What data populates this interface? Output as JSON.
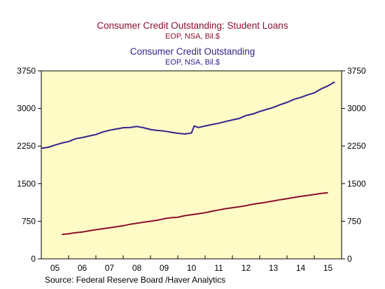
{
  "chart_data": {
    "type": "line",
    "legend_placement": "top-center",
    "grid": false,
    "background_color": "#FFFBC6",
    "titles": [
      {
        "text": "Consumer Credit Outstanding: Student Loans",
        "sub": "EOP, NSA, Bil.$",
        "color": "#8B0F2E"
      },
      {
        "text": "Consumer Credit Outstanding",
        "sub": "EOP, NSA, Bil.$",
        "color": "#33228B"
      }
    ],
    "source": "Source:  Federal Reserve Board /Haver Analytics",
    "x_ticks": [
      "05",
      "06",
      "07",
      "08",
      "09",
      "10",
      "11",
      "12",
      "13",
      "14",
      "15"
    ],
    "xlim": [
      2005,
      2016
    ],
    "ylim": [
      0,
      3750
    ],
    "y_ticks": [
      "0",
      "750",
      "1500",
      "2250",
      "3000",
      "3750"
    ],
    "series": [
      {
        "color": "#33228B",
        "x": [
          2005.0,
          2005.25,
          2005.5,
          2005.75,
          2006.0,
          2006.25,
          2006.5,
          2006.75,
          2007.0,
          2007.25,
          2007.5,
          2007.75,
          2008.0,
          2008.25,
          2008.5,
          2008.75,
          2009.0,
          2009.25,
          2009.5,
          2009.75,
          2010.0,
          2010.25,
          2010.5,
          2010.6,
          2010.75,
          2011.0,
          2011.25,
          2011.5,
          2011.75,
          2012.0,
          2012.25,
          2012.5,
          2012.75,
          2013.0,
          2013.25,
          2013.5,
          2013.75,
          2014.0,
          2014.25,
          2014.5,
          2014.75,
          2015.0,
          2015.25,
          2015.5,
          2015.75
        ],
        "values": [
          2205,
          2225,
          2270,
          2310,
          2340,
          2395,
          2420,
          2450,
          2480,
          2530,
          2565,
          2590,
          2615,
          2620,
          2640,
          2615,
          2580,
          2560,
          2550,
          2525,
          2505,
          2490,
          2510,
          2650,
          2620,
          2650,
          2680,
          2705,
          2740,
          2770,
          2800,
          2860,
          2890,
          2940,
          2980,
          3020,
          3075,
          3120,
          3180,
          3220,
          3270,
          3310,
          3390,
          3450,
          3530
        ]
      },
      {
        "color": "#8B0F2E",
        "x": [
          2005.75,
          2006.0,
          2006.25,
          2006.5,
          2006.75,
          2007.0,
          2007.25,
          2007.5,
          2007.75,
          2008.0,
          2008.25,
          2008.5,
          2008.75,
          2009.0,
          2009.25,
          2009.5,
          2009.75,
          2010.0,
          2010.25,
          2010.5,
          2010.75,
          2011.0,
          2011.25,
          2011.5,
          2011.75,
          2012.0,
          2012.25,
          2012.5,
          2012.75,
          2013.0,
          2013.25,
          2013.5,
          2013.75,
          2014.0,
          2014.25,
          2014.5,
          2014.75,
          2015.0,
          2015.25,
          2015.5
        ],
        "values": [
          485,
          500,
          520,
          535,
          560,
          580,
          600,
          620,
          640,
          660,
          690,
          710,
          730,
          750,
          770,
          800,
          820,
          830,
          860,
          880,
          900,
          920,
          950,
          975,
          1000,
          1020,
          1040,
          1060,
          1090,
          1110,
          1130,
          1155,
          1180,
          1200,
          1225,
          1245,
          1265,
          1285,
          1305,
          1320
        ]
      }
    ]
  }
}
